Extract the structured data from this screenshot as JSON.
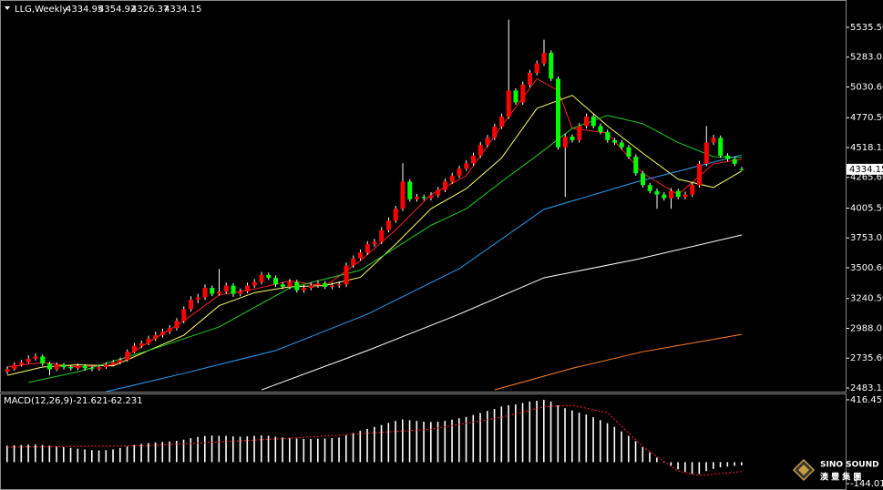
{
  "chart_data": [
    {
      "type": "candlestick",
      "title": "LLG,Weekly",
      "up_color": "#ff0000",
      "down_color": "#00ff00",
      "wick_color": "#ffffff",
      "ylim": [
        2452.3,
        5751.3
      ],
      "yticks": [
        {
          "value": 5535.5,
          "label": "5535.50"
        },
        5283.05,
        {
          "value": 5030.6,
          "label": "5030.60"
        },
        {
          "value": 4770.5,
          "label": "4770.50"
        },
        4518.15,
        {
          "value": 4265.6,
          "label": "4265.60"
        },
        {
          "value": 4005.5,
          "label": "4005.50"
        },
        3753.05,
        {
          "value": 3500.6,
          "label": "3500.60"
        },
        {
          "value": 3240.5,
          "label": "3240.50"
        },
        2988.05,
        {
          "value": 2735.6,
          "label": "2735.60"
        },
        2483.15
      ],
      "ohlc": [
        [
          2620,
          2665,
          2600,
          2643
        ],
        [
          2643,
          2700,
          2630,
          2680
        ],
        [
          2680,
          2720,
          2665,
          2700
        ],
        [
          2700,
          2760,
          2690,
          2730
        ],
        [
          2730,
          2775,
          2715,
          2750
        ],
        [
          2750,
          2765,
          2670,
          2690
        ],
        [
          2690,
          2705,
          2590,
          2640
        ],
        [
          2640,
          2700,
          2625,
          2680
        ],
        [
          2680,
          2695,
          2640,
          2660
        ],
        [
          2660,
          2675,
          2630,
          2650
        ],
        [
          2650,
          2690,
          2635,
          2670
        ],
        [
          2670,
          2685,
          2630,
          2650
        ],
        [
          2650,
          2665,
          2625,
          2643
        ],
        [
          2643,
          2680,
          2630,
          2660
        ],
        [
          2660,
          2700,
          2645,
          2680
        ],
        [
          2680,
          2720,
          2665,
          2700
        ],
        [
          2700,
          2740,
          2685,
          2720
        ],
        [
          2720,
          2810,
          2705,
          2790
        ],
        [
          2790,
          2865,
          2775,
          2840
        ],
        [
          2840,
          2885,
          2820,
          2860
        ],
        [
          2860,
          2925,
          2845,
          2900
        ],
        [
          2900,
          2960,
          2880,
          2930
        ],
        [
          2930,
          2985,
          2910,
          2960
        ],
        [
          2960,
          3015,
          2940,
          2990
        ],
        [
          2990,
          3075,
          2970,
          3050
        ],
        [
          3050,
          3175,
          3030,
          3150
        ],
        [
          3150,
          3260,
          3130,
          3230
        ],
        [
          3230,
          3280,
          3200,
          3250
        ],
        [
          3250,
          3360,
          3230,
          3330
        ],
        [
          3330,
          3350,
          3260,
          3280
        ],
        [
          3280,
          3490,
          3265,
          3300
        ],
        [
          3300,
          3375,
          3280,
          3350
        ],
        [
          3350,
          3370,
          3255,
          3280
        ],
        [
          3280,
          3325,
          3260,
          3300
        ],
        [
          3300,
          3375,
          3285,
          3350
        ],
        [
          3350,
          3405,
          3330,
          3380
        ],
        [
          3380,
          3465,
          3360,
          3440
        ],
        [
          3440,
          3460,
          3395,
          3415
        ],
        [
          3415,
          3435,
          3340,
          3360
        ],
        [
          3360,
          3380,
          3320,
          3340
        ],
        [
          3340,
          3405,
          3320,
          3380
        ],
        [
          3380,
          3400,
          3290,
          3310
        ],
        [
          3310,
          3355,
          3290,
          3330
        ],
        [
          3330,
          3375,
          3310,
          3350
        ],
        [
          3350,
          3395,
          3330,
          3370
        ],
        [
          3370,
          3390,
          3320,
          3340
        ],
        [
          3340,
          3375,
          3320,
          3350
        ],
        [
          3350,
          3385,
          3330,
          3360
        ],
        [
          3360,
          3545,
          3340,
          3520
        ],
        [
          3520,
          3605,
          3500,
          3580
        ],
        [
          3580,
          3655,
          3560,
          3630
        ],
        [
          3630,
          3725,
          3610,
          3700
        ],
        [
          3700,
          3745,
          3680,
          3720
        ],
        [
          3720,
          3845,
          3700,
          3820
        ],
        [
          3820,
          3925,
          3800,
          3900
        ],
        [
          3900,
          4025,
          3880,
          4000
        ],
        [
          4000,
          4385,
          3980,
          4230
        ],
        [
          4230,
          4250,
          4060,
          4080
        ],
        [
          4080,
          4125,
          4060,
          4100
        ],
        [
          4100,
          4120,
          4070,
          4090
        ],
        [
          4090,
          4140,
          4070,
          4115
        ],
        [
          4115,
          4185,
          4095,
          4160
        ],
        [
          4160,
          4255,
          4140,
          4230
        ],
        [
          4230,
          4305,
          4210,
          4280
        ],
        [
          4280,
          4365,
          4260,
          4340
        ],
        [
          4340,
          4410,
          4320,
          4385
        ],
        [
          4385,
          4475,
          4365,
          4450
        ],
        [
          4450,
          4565,
          4430,
          4540
        ],
        [
          4540,
          4625,
          4520,
          4600
        ],
        [
          4600,
          4720,
          4580,
          4695
        ],
        [
          4695,
          4805,
          4675,
          4780
        ],
        [
          4780,
          5600,
          4760,
          5000
        ],
        [
          5000,
          5020,
          4880,
          4900
        ],
        [
          4900,
          5075,
          4880,
          5050
        ],
        [
          5050,
          5175,
          5030,
          5150
        ],
        [
          5150,
          5255,
          5130,
          5230
        ],
        [
          5230,
          5430,
          5210,
          5320
        ],
        [
          5320,
          5340,
          5080,
          5100
        ],
        [
          5100,
          5120,
          4500,
          4520
        ],
        [
          4520,
          4635,
          4100,
          4610
        ],
        [
          4610,
          4630,
          4560,
          4580
        ],
        [
          4580,
          4725,
          4560,
          4700
        ],
        [
          4700,
          4805,
          4680,
          4780
        ],
        [
          4780,
          4800,
          4680,
          4700
        ],
        [
          4700,
          4720,
          4630,
          4650
        ],
        [
          4650,
          4670,
          4560,
          4580
        ],
        [
          4580,
          4600,
          4540,
          4560
        ],
        [
          4560,
          4580,
          4500,
          4520
        ],
        [
          4520,
          4540,
          4420,
          4440
        ],
        [
          4440,
          4460,
          4280,
          4300
        ],
        [
          4300,
          4320,
          4180,
          4200
        ],
        [
          4200,
          4220,
          4130,
          4150
        ],
        [
          4150,
          4170,
          4000,
          4120
        ],
        [
          4120,
          4140,
          4070,
          4090
        ],
        [
          4090,
          4175,
          4000,
          4150
        ],
        [
          4150,
          4170,
          4080,
          4100
        ],
        [
          4100,
          4145,
          4080,
          4120
        ],
        [
          4120,
          4225,
          4100,
          4200
        ],
        [
          4200,
          4405,
          4180,
          4380
        ],
        [
          4380,
          4700,
          4360,
          4560
        ],
        [
          4560,
          4625,
          4540,
          4600
        ],
        [
          4600,
          4620,
          4430,
          4450
        ],
        [
          4450,
          4470,
          4400,
          4420
        ],
        [
          4420,
          4440,
          4360,
          4380
        ],
        [
          4334.95,
          4354.92,
          4326.37,
          4334.15
        ]
      ],
      "lines": [
        {
          "color": "#ff2020",
          "x": [
            0,
            5,
            10,
            15,
            20,
            25,
            30,
            35,
            40,
            45,
            50,
            55,
            60,
            65,
            70,
            75,
            78,
            80,
            85,
            90,
            95,
            100,
            104
          ],
          "values": [
            2660,
            2700,
            2660,
            2680,
            2870,
            3050,
            3270,
            3320,
            3390,
            3345,
            3560,
            3820,
            4120,
            4280,
            4700,
            5100,
            5000,
            4680,
            4640,
            4300,
            4120,
            4380,
            4420
          ]
        },
        {
          "color": "#ffff66",
          "x": [
            0,
            5,
            10,
            15,
            20,
            25,
            30,
            35,
            40,
            45,
            50,
            55,
            60,
            65,
            70,
            75,
            80,
            85,
            90,
            95,
            100,
            104
          ],
          "values": [
            2590,
            2660,
            2680,
            2670,
            2800,
            2930,
            3180,
            3290,
            3340,
            3350,
            3420,
            3700,
            4000,
            4170,
            4430,
            4850,
            4960,
            4700,
            4470,
            4250,
            4180,
            4320
          ]
        },
        {
          "color": "#22cc22",
          "x": [
            3,
            10,
            20,
            30,
            40,
            50,
            60,
            65,
            70,
            75,
            80,
            85,
            90,
            95,
            100,
            104
          ],
          "values": [
            2530,
            2620,
            2800,
            3000,
            3330,
            3480,
            3860,
            4000,
            4230,
            4450,
            4680,
            4790,
            4720,
            4560,
            4440,
            4435
          ]
        },
        {
          "color": "#2a9df4",
          "x": [
            14,
            25,
            38,
            51,
            64,
            76,
            89,
            104
          ],
          "values": [
            2452,
            2607,
            2800,
            3108,
            3493,
            3995,
            4225,
            4456
          ]
        },
        {
          "color": "#ffffff",
          "x": [
            36,
            51,
            64,
            76,
            89,
            104
          ],
          "values": [
            2467,
            2800,
            3108,
            3416,
            3570,
            3778
          ]
        },
        {
          "color": "#ff7f27",
          "x": [
            69,
            80,
            90,
            104
          ],
          "values": [
            2467,
            2650,
            2790,
            2937
          ]
        }
      ],
      "logo": {
        "name": "SINO SOUND",
        "subtitle": "澳 豐 集 團"
      }
    },
    {
      "type": "macd",
      "title": "MACD(12,26,9)",
      "color": "#ffffff",
      "ylim": [
        -180,
        452.6
      ],
      "yticks": [
        416.453,
        -144.012
      ],
      "values": [
        110,
        112,
        115,
        118,
        118,
        115,
        110,
        105,
        100,
        95,
        90,
        85,
        80,
        78,
        80,
        85,
        95,
        105,
        115,
        122,
        128,
        132,
        135,
        138,
        142,
        150,
        160,
        168,
        175,
        178,
        176,
        176,
        172,
        170,
        172,
        176,
        178,
        176,
        170,
        165,
        162,
        158,
        155,
        155,
        156,
        158,
        160,
        164,
        180,
        195,
        210,
        222,
        235,
        248,
        262,
        275,
        285,
        280,
        275,
        270,
        268,
        270,
        276,
        284,
        293,
        302,
        315,
        328,
        342,
        355,
        372,
        380,
        385,
        395,
        405,
        410,
        416,
        405,
        380,
        360,
        345,
        330,
        318,
        300,
        280,
        260,
        235,
        205,
        175,
        140,
        102,
        65,
        30,
        0,
        -25,
        -48,
        -65,
        -78,
        -80,
        -60,
        -45,
        -35,
        -30,
        -25,
        -21.621
      ],
      "signal": {
        "color": "#ff2020",
        "x": [
          0,
          20,
          40,
          60,
          70,
          76,
          80,
          85,
          90,
          95,
          98,
          100,
          104
        ],
        "values": [
          100,
          110,
          160,
          220,
          300,
          370,
          380,
          330,
          102,
          -60,
          -90,
          -80,
          -62.231
        ]
      }
    }
  ]
}
